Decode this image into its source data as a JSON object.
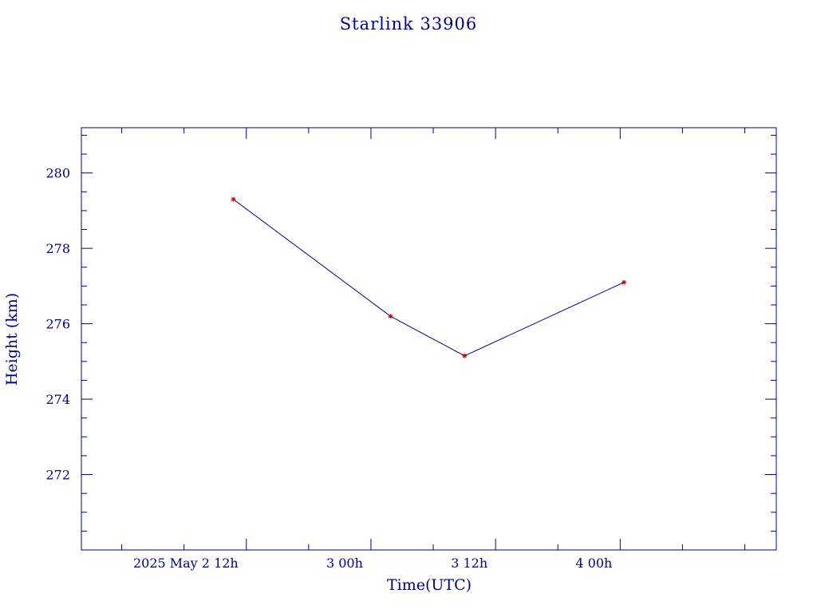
{
  "chart_data": {
    "type": "line",
    "title": "Starlink 33906",
    "xlabel": "Time(UTC)",
    "ylabel": "Height (km)",
    "x_tick_labels": [
      {
        "t": "2025-05-02T12:00Z",
        "label": "2025 May  2  12h"
      },
      {
        "t": "2025-05-03T00:00Z",
        "label": "3  00h"
      },
      {
        "t": "2025-05-03T12:00Z",
        "label": "3  12h"
      },
      {
        "t": "2025-05-04T00:00Z",
        "label": "4  00h"
      }
    ],
    "x_minor_ticks": [
      "2025-05-02T00:00Z",
      "2025-05-02T06:00Z",
      "2025-05-02T18:00Z",
      "2025-05-03T06:00Z",
      "2025-05-03T18:00Z",
      "2025-05-04T06:00Z",
      "2025-05-04T12:00Z"
    ],
    "xlim": [
      "2025-05-01T20:07Z",
      "2025-05-04T15:02Z"
    ],
    "y_ticks": [
      272,
      274,
      276,
      278,
      280
    ],
    "ylim": [
      270.0,
      281.2
    ],
    "points": [
      {
        "t": "2025-05-02T10:45Z",
        "y": 279.3
      },
      {
        "t": "2025-05-03T01:53Z",
        "y": 276.2
      },
      {
        "t": "2025-05-03T09:01Z",
        "y": 275.15
      },
      {
        "t": "2025-05-04T00:22Z",
        "y": 277.1
      }
    ],
    "grid": false,
    "colors": {
      "axes": "#00008b",
      "text": "#00008b",
      "line": "#00008b",
      "marker": "#cc0000"
    }
  }
}
